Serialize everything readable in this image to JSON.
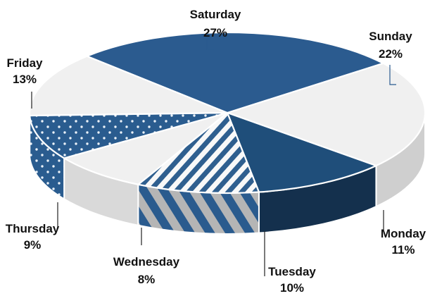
{
  "chart_data": {
    "type": "pie",
    "style": "3d-exploded-pie",
    "title": "",
    "slices": [
      {
        "name": "Sunday",
        "value": 22,
        "label_value": "22%",
        "fill": "#f0f0f0",
        "side_fill": "#cfcfcf",
        "pattern": "none"
      },
      {
        "name": "Monday",
        "value": 11,
        "label_value": "11%",
        "fill": "#1f4e7a",
        "side_fill": "#14304d",
        "pattern": "none"
      },
      {
        "name": "Tuesday",
        "value": 10,
        "label_value": "10%",
        "fill": "#2f5f8f",
        "side_fill": "#bdbdbd",
        "pattern": "diagonal-stripes"
      },
      {
        "name": "Wednesday",
        "value": 8,
        "label_value": "8%",
        "fill": "#f0f0f0",
        "side_fill": "#d9d9d9",
        "pattern": "none"
      },
      {
        "name": "Thursday",
        "value": 9,
        "label_value": "9%",
        "fill": "#2a5c8f",
        "side_fill": "#244f80",
        "pattern": "dots"
      },
      {
        "name": "Friday",
        "value": 13,
        "label_value": "13%",
        "fill": "#f0f0f0",
        "side_fill": "#d7d7d7",
        "pattern": "none"
      },
      {
        "name": "Saturday",
        "value": 27,
        "label_value": "27%",
        "fill": "#2b5b8f",
        "side_fill": "#1f4d78",
        "pattern": "none"
      }
    ],
    "colors": {
      "edge": "#ffffff",
      "label_text": "#111111",
      "leader_dark": "#222222",
      "leader_blue": "#2b5b8f"
    },
    "legend": "none",
    "grid": false
  }
}
